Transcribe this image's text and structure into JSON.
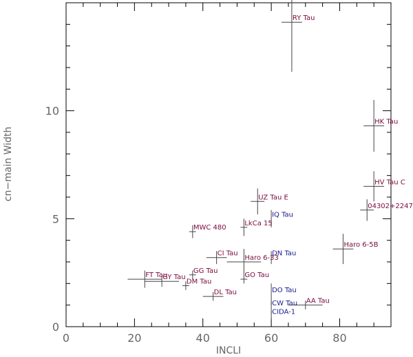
{
  "chart_data": {
    "type": "scatter",
    "title": "",
    "xlabel": "INCLI",
    "ylabel": "cn−main Width",
    "xlim": [
      0,
      95
    ],
    "ylim": [
      0,
      15
    ],
    "x_ticks": [
      0,
      20,
      40,
      60,
      80
    ],
    "y_ticks": [
      0,
      5,
      10
    ],
    "x_tick_labels": [
      "0",
      "20",
      "40",
      "60",
      "80"
    ],
    "y_tick_labels": [
      "0",
      "5",
      "10"
    ],
    "grid": false,
    "label_colors": {
      "maroon": "#7a0a3c",
      "navy": "#1a1a8c"
    },
    "points": [
      {
        "name": "RY Tau",
        "x": 66,
        "y": 14.1,
        "xerr": 3,
        "yerr": 2.3,
        "color": "maroon"
      },
      {
        "name": "HK Tau",
        "x": 90,
        "y": 9.3,
        "xerr": 3,
        "yerr": 1.2,
        "color": "maroon"
      },
      {
        "name": "HV Tau C",
        "x": 90,
        "y": 6.5,
        "xerr": 3,
        "yerr": 0.7,
        "color": "maroon"
      },
      {
        "name": "04302+2247",
        "x": 88,
        "y": 5.4,
        "xerr": 2,
        "yerr": 0.5,
        "color": "maroon"
      },
      {
        "name": "UZ Tau E",
        "x": 56,
        "y": 5.8,
        "xerr": 2,
        "yerr": 0.6,
        "color": "maroon"
      },
      {
        "name": "IQ Tau",
        "x": 60,
        "y": 5.0,
        "xerr": 0,
        "yerr": 0.4,
        "color": "navy"
      },
      {
        "name": "LkCa 15",
        "x": 52,
        "y": 4.6,
        "xerr": 1,
        "yerr": 0.4,
        "color": "maroon"
      },
      {
        "name": "MWC 480",
        "x": 37,
        "y": 4.4,
        "xerr": 1,
        "yerr": 0.3,
        "color": "maroon"
      },
      {
        "name": "Haro 6-5B",
        "x": 81,
        "y": 3.6,
        "xerr": 3,
        "yerr": 0.7,
        "color": "maroon"
      },
      {
        "name": "CI Tau",
        "x": 44,
        "y": 3.2,
        "xerr": 3,
        "yerr": 0.3,
        "color": "maroon"
      },
      {
        "name": "DN Tau",
        "x": 60,
        "y": 3.2,
        "xerr": 0,
        "yerr": 0.3,
        "color": "navy"
      },
      {
        "name": "Haro 6-33",
        "x": 52,
        "y": 3.0,
        "xerr": 5,
        "yerr": 0.6,
        "color": "maroon"
      },
      {
        "name": "FT Tau",
        "x": 23,
        "y": 2.2,
        "xerr": 5,
        "yerr": 0.4,
        "color": "maroon"
      },
      {
        "name": "GY Tau",
        "x": 28,
        "y": 2.1,
        "xerr": 5,
        "yerr": 0.25,
        "color": "maroon"
      },
      {
        "name": "GG Tau",
        "x": 37,
        "y": 2.4,
        "xerr": 1,
        "yerr": 0.2,
        "color": "maroon"
      },
      {
        "name": "GO Tau",
        "x": 52,
        "y": 2.2,
        "xerr": 1,
        "yerr": 0.2,
        "color": "maroon"
      },
      {
        "name": "DM Tau",
        "x": 35,
        "y": 1.9,
        "xerr": 1,
        "yerr": 0.2,
        "color": "maroon"
      },
      {
        "name": "DL Tau",
        "x": 43,
        "y": 1.4,
        "xerr": 3,
        "yerr": 0.2,
        "color": "maroon"
      },
      {
        "name": "DO Tau",
        "x": 60,
        "y": 1.5,
        "xerr": 0,
        "yerr": 0.5,
        "color": "navy"
      },
      {
        "name": "CW Tau",
        "x": 60,
        "y": 0.9,
        "xerr": 0,
        "yerr": 0.3,
        "color": "navy"
      },
      {
        "name": "CIDA-1",
        "x": 60,
        "y": 0.5,
        "xerr": 0,
        "yerr": 0.2,
        "color": "navy"
      },
      {
        "name": "AA Tau",
        "x": 70,
        "y": 1.0,
        "xerr": 5,
        "yerr": 0.2,
        "color": "maroon"
      }
    ]
  }
}
